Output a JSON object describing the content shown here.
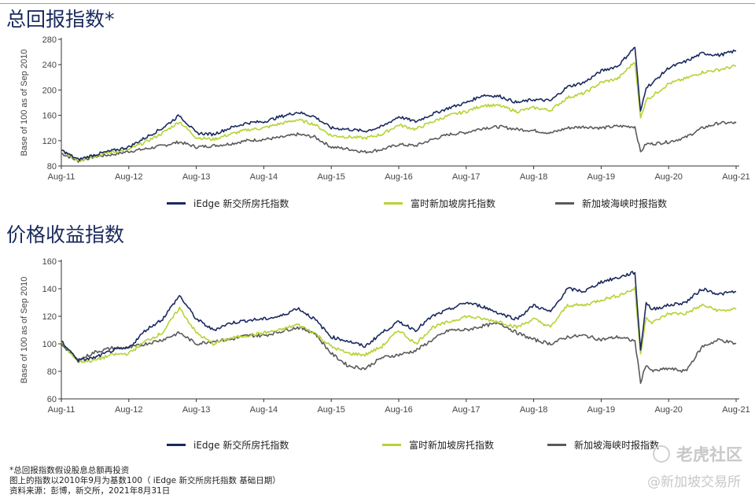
{
  "sections": [
    {
      "title": "总回报指数*"
    },
    {
      "title": "价格收益指数"
    }
  ],
  "legend_items": [
    {
      "label": "iEdge 新交所房托指数",
      "color": "#1a2a5e"
    },
    {
      "label": "富时新加坡房托指数",
      "color": "#b5d334"
    },
    {
      "label": "新加坡海峡时报指数",
      "color": "#5a5a5a"
    }
  ],
  "notes": [
    "*总回报指数假设股息总额再投资",
    "图上的指数以2010年9月为基数100（ iEdge 新交所房托指数 基础日期）",
    "资料来源：彭博，新交所，2021年8月31日"
  ],
  "watermark": {
    "line1": "老虎社区",
    "line2": "@新加坡交易所"
  },
  "chart_data": [
    {
      "type": "line",
      "title": "总回报指数*",
      "ylabel": "Base of 100 as of Sep 2010",
      "ylim": [
        80,
        280
      ],
      "yticks": [
        80,
        120,
        160,
        200,
        240,
        280
      ],
      "xticks": [
        "Aug-11",
        "Aug-12",
        "Aug-13",
        "Aug-14",
        "Aug-15",
        "Aug-16",
        "Aug-17",
        "Aug-18",
        "Aug-19",
        "Aug-20",
        "Aug-21"
      ],
      "x": [
        "Aug-11",
        "Nov-11",
        "Feb-12",
        "May-12",
        "Aug-12",
        "Nov-12",
        "Feb-13",
        "May-13",
        "Aug-13",
        "Nov-13",
        "Feb-14",
        "May-14",
        "Aug-14",
        "Nov-14",
        "Feb-15",
        "May-15",
        "Aug-15",
        "Nov-15",
        "Feb-16",
        "May-16",
        "Aug-16",
        "Nov-16",
        "Feb-17",
        "May-17",
        "Aug-17",
        "Nov-17",
        "Feb-18",
        "May-18",
        "Aug-18",
        "Nov-18",
        "Feb-19",
        "May-19",
        "Aug-19",
        "Nov-19",
        "Feb-20",
        "Mar-20",
        "Apr-20",
        "May-20",
        "Aug-20",
        "Nov-20",
        "Feb-21",
        "May-21",
        "Aug-21"
      ],
      "series": [
        {
          "name": "iEdge 新交所房托指数",
          "color": "#1a2a5e",
          "values": [
            105,
            90,
            98,
            104,
            110,
            125,
            140,
            160,
            132,
            130,
            140,
            148,
            150,
            158,
            165,
            158,
            140,
            138,
            135,
            142,
            158,
            150,
            162,
            172,
            180,
            192,
            190,
            180,
            185,
            183,
            205,
            212,
            230,
            238,
            268,
            165,
            205,
            210,
            235,
            245,
            258,
            255,
            262
          ]
        },
        {
          "name": "富时新加坡房托指数",
          "color": "#b5d334",
          "values": [
            104,
            89,
            96,
            102,
            106,
            118,
            132,
            150,
            125,
            122,
            130,
            137,
            140,
            147,
            153,
            146,
            128,
            126,
            124,
            130,
            145,
            138,
            150,
            160,
            166,
            176,
            175,
            166,
            172,
            168,
            188,
            195,
            212,
            218,
            245,
            155,
            185,
            190,
            210,
            218,
            228,
            232,
            238
          ]
        },
        {
          "name": "新加坡海峡时报指数",
          "color": "#5a5a5a",
          "values": [
            100,
            88,
            95,
            98,
            103,
            107,
            112,
            118,
            110,
            112,
            115,
            120,
            122,
            125,
            130,
            126,
            110,
            107,
            102,
            106,
            114,
            112,
            122,
            130,
            133,
            140,
            142,
            138,
            136,
            132,
            140,
            142,
            140,
            143,
            142,
            102,
            115,
            115,
            118,
            125,
            140,
            148,
            148
          ]
        }
      ]
    },
    {
      "type": "line",
      "title": "价格收益指数",
      "ylabel": "Base of 100 as of Sep 2010",
      "ylim": [
        60,
        160
      ],
      "yticks": [
        60,
        80,
        100,
        120,
        140,
        160
      ],
      "xticks": [
        "Aug-11",
        "Aug-12",
        "Aug-13",
        "Aug-14",
        "Aug-15",
        "Aug-16",
        "Aug-17",
        "Aug-18",
        "Aug-19",
        "Aug-20",
        "Aug-21"
      ],
      "x": [
        "Aug-11",
        "Nov-11",
        "Feb-12",
        "May-12",
        "Aug-12",
        "Nov-12",
        "Feb-13",
        "May-13",
        "Aug-13",
        "Nov-13",
        "Feb-14",
        "May-14",
        "Aug-14",
        "Nov-14",
        "Feb-15",
        "May-15",
        "Aug-15",
        "Nov-15",
        "Feb-16",
        "May-16",
        "Aug-16",
        "Nov-16",
        "Feb-17",
        "May-17",
        "Aug-17",
        "Nov-17",
        "Feb-18",
        "May-18",
        "Aug-18",
        "Nov-18",
        "Feb-19",
        "May-19",
        "Aug-19",
        "Nov-19",
        "Feb-20",
        "Mar-20",
        "Apr-20",
        "May-20",
        "Aug-20",
        "Nov-20",
        "Feb-21",
        "May-21",
        "Aug-21"
      ],
      "series": [
        {
          "name": "iEdge 新交所房托指数",
          "color": "#1a2a5e",
          "values": [
            102,
            88,
            90,
            95,
            97,
            110,
            118,
            135,
            118,
            110,
            115,
            117,
            118,
            120,
            126,
            118,
            105,
            102,
            98,
            108,
            116,
            110,
            120,
            125,
            130,
            127,
            122,
            118,
            128,
            123,
            140,
            138,
            145,
            148,
            152,
            95,
            130,
            125,
            128,
            130,
            140,
            136,
            138
          ]
        },
        {
          "name": "富时新加坡房托指数",
          "color": "#b5d334",
          "values": [
            101,
            87,
            88,
            92,
            93,
            102,
            108,
            126,
            108,
            100,
            104,
            106,
            108,
            110,
            114,
            108,
            98,
            93,
            92,
            98,
            110,
            100,
            112,
            116,
            120,
            118,
            116,
            112,
            118,
            112,
            128,
            128,
            132,
            135,
            140,
            92,
            120,
            115,
            122,
            122,
            128,
            124,
            125
          ]
        },
        {
          "name": "新加坡海峡时报指数",
          "color": "#5a5a5a",
          "values": [
            100,
            88,
            94,
            97,
            97,
            100,
            103,
            108,
            100,
            102,
            103,
            106,
            106,
            109,
            112,
            108,
            93,
            84,
            82,
            90,
            92,
            95,
            103,
            110,
            110,
            113,
            115,
            108,
            103,
            100,
            105,
            106,
            103,
            105,
            102,
            72,
            85,
            80,
            82,
            80,
            98,
            103,
            100
          ]
        }
      ]
    }
  ]
}
